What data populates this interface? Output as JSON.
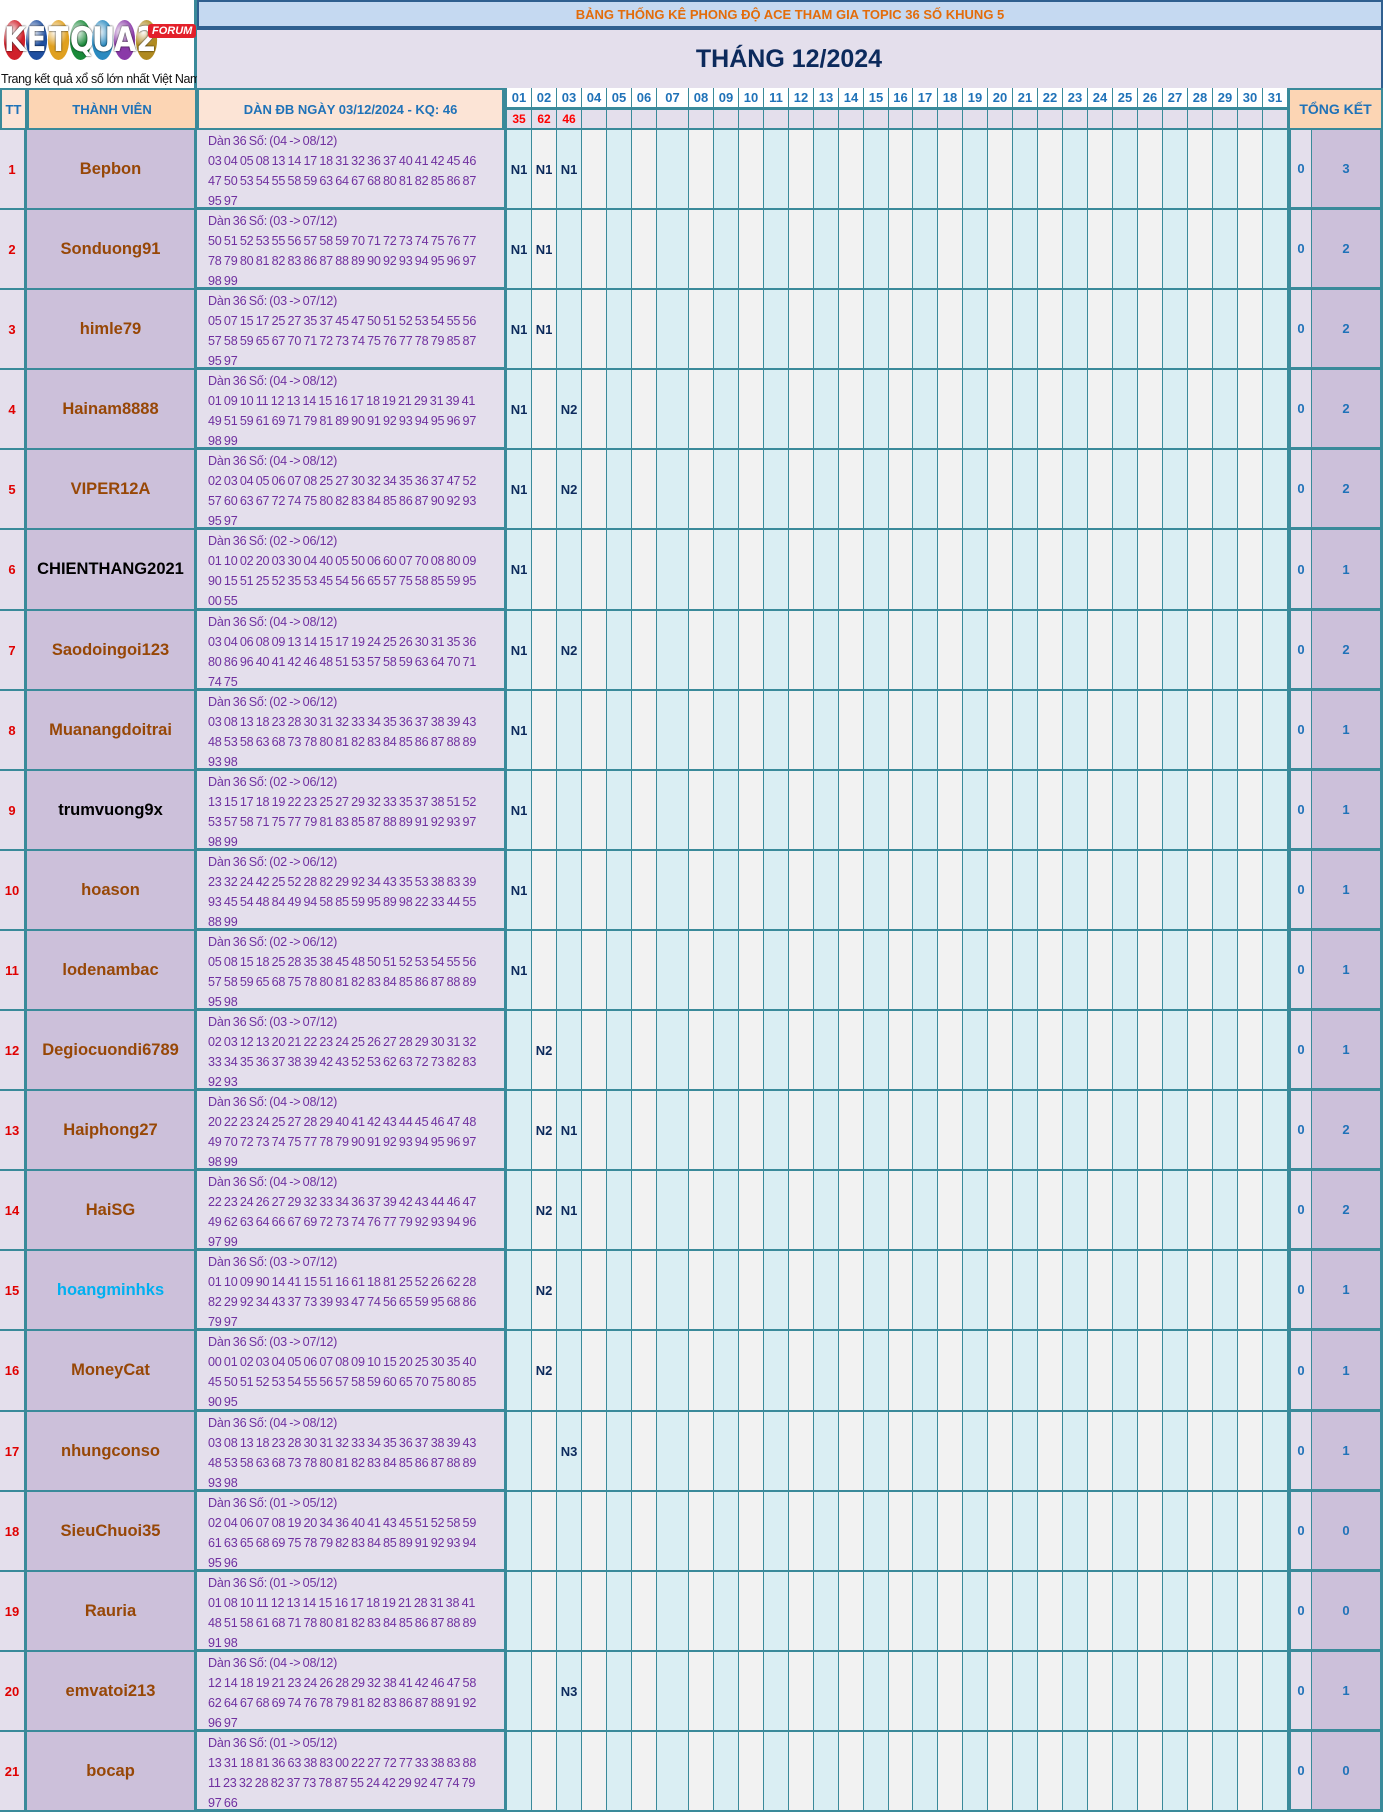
{
  "logo": {
    "letters": [
      "K",
      "E",
      "T",
      "Q",
      "U",
      "A",
      "2"
    ],
    "letter_colors": [
      "#d0202a",
      "#1f4fa0",
      "#e0a020",
      "#1a8a3a",
      "#2a8ac0",
      "#8a3aa8",
      "#b08a20"
    ],
    "forum_badge": "FORUM",
    "slogan": "Trang kết quả xổ số lớn nhất Việt Nam"
  },
  "header": {
    "banner": "BẢNG THỐNG KÊ PHONG ĐỘ ACE THAM GIA TOPIC 36 SỐ KHUNG 5",
    "title": "THÁNG 12/2024"
  },
  "columns": {
    "tt": "TT",
    "member": "THÀNH VIÊN",
    "dan": "DÀN ĐB NGÀY 03/12/2024 - KQ: 46",
    "summary": "TỔNG KẾT"
  },
  "days": [
    "01",
    "02",
    "03",
    "04",
    "05",
    "06",
    "07",
    "08",
    "09",
    "10",
    "11",
    "12",
    "13",
    "14",
    "15",
    "16",
    "17",
    "18",
    "19",
    "20",
    "21",
    "22",
    "23",
    "24",
    "25",
    "26",
    "27",
    "28",
    "29",
    "30",
    "31"
  ],
  "results": [
    "35",
    "62",
    "46",
    "",
    "",
    "",
    "",
    "",
    "",
    "",
    "",
    "",
    "",
    "",
    "",
    "",
    "",
    "",
    "",
    "",
    "",
    "",
    "",
    "",
    "",
    "",
    "",
    "",
    "",
    "",
    ""
  ],
  "colors": {
    "name_default": "#974706",
    "name_black": "#000000",
    "name_blue": "#00b0f0",
    "tt_red": "#e00000",
    "result_red": "#ff0000",
    "header_blue": "#1f72b8",
    "banner_orange": "#e36c0a",
    "dan_purple": "#7030a0"
  },
  "rows": [
    {
      "tt": "1",
      "name": "Bepbon",
      "name_color": "#974706",
      "dan_title": "Dàn 36 Số: (04 -> 08/12)",
      "dan_lines": [
        "03 04 05 08 13 14 17 18 31 32 36 37 40 41 42 45 46",
        "47 50 53 54 55 58 59 63 64 67 68 80 81 82 85 86 87",
        "95 97"
      ],
      "marks": [
        "N1",
        "N1",
        "N1"
      ],
      "t1": "0",
      "t2": "3"
    },
    {
      "tt": "2",
      "name": "Sonduong91",
      "name_color": "#974706",
      "dan_title": "Dàn 36 Số: (03 -> 07/12)",
      "dan_lines": [
        "50 51 52 53 55 56 57 58 59 70 71 72 73 74 75 76 77",
        "78 79 80 81 82 83 86 87 88 89 90 92 93 94 95 96 97",
        "98 99"
      ],
      "marks": [
        "N1",
        "N1",
        ""
      ],
      "t1": "0",
      "t2": "2"
    },
    {
      "tt": "3",
      "name": "himle79",
      "name_color": "#974706",
      "dan_title": "Dàn 36 Số: (03 -> 07/12)",
      "dan_lines": [
        "05 07 15 17 25 27 35 37 45 47 50 51 52 53 54 55 56",
        "57 58 59 65 67 70 71 72 73 74 75 76 77 78 79 85 87",
        "95 97"
      ],
      "marks": [
        "N1",
        "N1",
        ""
      ],
      "t1": "0",
      "t2": "2"
    },
    {
      "tt": "4",
      "name": "Hainam8888",
      "name_color": "#974706",
      "dan_title": "Dàn 36 Số: (04 -> 08/12)",
      "dan_lines": [
        "01 09 10 11 12 13 14 15 16 17 18 19 21 29 31 39 41",
        "49 51 59 61 69 71 79 81 89 90 91 92 93 94 95 96 97",
        "98 99"
      ],
      "marks": [
        "N1",
        "",
        "N2"
      ],
      "t1": "0",
      "t2": "2"
    },
    {
      "tt": "5",
      "name": "VIPER12A",
      "name_color": "#974706",
      "dan_title": "Dàn 36 Số: (04 -> 08/12)",
      "dan_lines": [
        "02 03 04 05 06 07 08 25 27 30 32 34 35 36 37 47 52",
        "57 60 63 67 72 74 75 80 82 83 84 85 86 87 90 92 93",
        "95 97"
      ],
      "marks": [
        "N1",
        "",
        "N2"
      ],
      "t1": "0",
      "t2": "2"
    },
    {
      "tt": "6",
      "name": "CHIENTHANG2021",
      "name_color": "#000000",
      "dan_title": "Dàn 36 Số: (02 -> 06/12)",
      "dan_lines": [
        "01 10 02 20 03 30 04 40 05 50 06 60 07 70 08 80 09",
        "90 15 51 25 52 35 53 45 54 56 65 57 75 58 85 59 95",
        "00 55"
      ],
      "marks": [
        "N1",
        "",
        ""
      ],
      "t1": "0",
      "t2": "1"
    },
    {
      "tt": "7",
      "name": "Saodoingoi123",
      "name_color": "#974706",
      "dan_title": "Dàn 36 Số: (04 -> 08/12)",
      "dan_lines": [
        "03 04 06 08 09 13 14 15 17 19 24 25 26 30 31 35 36",
        "80 86 96 40 41 42 46 48 51 53 57 58 59 63 64 70 71",
        "74 75"
      ],
      "marks": [
        "N1",
        "",
        "N2"
      ],
      "t1": "0",
      "t2": "2"
    },
    {
      "tt": "8",
      "name": "Muanangdoitrai",
      "name_color": "#974706",
      "dan_title": "Dàn 36 Số: (02 -> 06/12)",
      "dan_lines": [
        "03 08 13 18 23 28 30 31 32 33 34 35 36 37 38 39 43",
        "48 53 58 63 68 73 78 80 81 82 83 84 85 86 87 88 89",
        "93 98"
      ],
      "marks": [
        "N1",
        "",
        ""
      ],
      "t1": "0",
      "t2": "1"
    },
    {
      "tt": "9",
      "name": "trumvuong9x",
      "name_color": "#000000",
      "dan_title": "Dàn 36 Số: (02 -> 06/12)",
      "dan_lines": [
        "13 15 17 18 19 22 23 25 27 29 32 33 35 37 38 51 52",
        "53 57 58 71 75 77 79 81 83 85 87 88 89 91 92 93 97",
        "98 99"
      ],
      "marks": [
        "N1",
        "",
        ""
      ],
      "t1": "0",
      "t2": "1"
    },
    {
      "tt": "10",
      "name": "hoason",
      "name_color": "#974706",
      "dan_title": "Dàn 36 Số: (02 -> 06/12)",
      "dan_lines": [
        "23 32 24 42 25 52 28 82 29 92 34 43 35 53 38 83 39",
        "93 45 54 48 84 49 94 58 85 59 95 89 98 22 33 44 55",
        "88 99"
      ],
      "marks": [
        "N1",
        "",
        ""
      ],
      "t1": "0",
      "t2": "1"
    },
    {
      "tt": "11",
      "name": "lodenambac",
      "name_color": "#974706",
      "dan_title": "Dàn 36 Số: (02 -> 06/12)",
      "dan_lines": [
        "05 08 15 18 25 28 35 38 45 48 50 51 52 53 54 55 56",
        "57 58 59 65 68 75 78 80 81 82 83 84 85 86 87 88 89",
        "95 98"
      ],
      "marks": [
        "N1",
        "",
        ""
      ],
      "t1": "0",
      "t2": "1"
    },
    {
      "tt": "12",
      "name": "Degiocuondi6789",
      "name_color": "#974706",
      "dan_title": "Dàn 36 Số: (03 -> 07/12)",
      "dan_lines": [
        "02 03 12 13 20 21 22 23 24 25 26 27 28 29 30 31 32",
        "33 34 35 36 37 38 39 42 43 52 53 62 63 72 73 82 83",
        "92 93"
      ],
      "marks": [
        "",
        "N2",
        ""
      ],
      "t1": "0",
      "t2": "1"
    },
    {
      "tt": "13",
      "name": "Haiphong27",
      "name_color": "#974706",
      "dan_title": "Dàn 36 Số: (04 -> 08/12)",
      "dan_lines": [
        "20 22 23 24 25 27 28 29 40 41 42 43 44 45 46 47 48",
        "49 70 72 73 74 75 77 78 79 90 91 92 93 94 95 96 97",
        "98 99"
      ],
      "marks": [
        "",
        "N2",
        "N1"
      ],
      "t1": "0",
      "t2": "2"
    },
    {
      "tt": "14",
      "name": "HaiSG",
      "name_color": "#974706",
      "dan_title": "Dàn 36 Số: (04 -> 08/12)",
      "dan_lines": [
        "22 23 24 26 27 29 32 33 34 36 37 39 42 43 44 46 47",
        "49 62 63 64 66 67 69 72 73 74 76 77 79 92 93 94 96",
        "97 99"
      ],
      "marks": [
        "",
        "N2",
        "N1"
      ],
      "t1": "0",
      "t2": "2"
    },
    {
      "tt": "15",
      "name": "hoangminhks",
      "name_color": "#00b0f0",
      "dan_title": "Dàn 36 Số: (03 -> 07/12)",
      "dan_lines": [
        "01 10 09 90 14 41 15 51 16 61 18 81 25 52 26 62 28",
        "82 29 92 34 43 37 73 39 93 47 74 56 65 59 95 68 86",
        "79 97"
      ],
      "marks": [
        "",
        "N2",
        ""
      ],
      "t1": "0",
      "t2": "1"
    },
    {
      "tt": "16",
      "name": "MoneyCat",
      "name_color": "#974706",
      "dan_title": "Dàn 36 Số: (03 -> 07/12)",
      "dan_lines": [
        "00 01 02 03 04 05 06 07 08 09 10 15 20 25 30 35 40",
        "45 50 51 52 53 54 55 56 57 58 59 60 65 70 75 80 85",
        "90 95"
      ],
      "marks": [
        "",
        "N2",
        ""
      ],
      "t1": "0",
      "t2": "1"
    },
    {
      "tt": "17",
      "name": "nhungconso",
      "name_color": "#974706",
      "dan_title": "Dàn 36 Số: (04 -> 08/12)",
      "dan_lines": [
        "03 08 13 18 23 28 30 31 32 33 34 35 36 37 38 39 43",
        "48 53 58 63 68 73 78 80 81 82 83 84 85 86 87 88 89",
        "93 98"
      ],
      "marks": [
        "",
        "",
        "N3"
      ],
      "t1": "0",
      "t2": "1"
    },
    {
      "tt": "18",
      "name": "SieuChuoi35",
      "name_color": "#974706",
      "dan_title": "Dàn 36 Số: (01 -> 05/12)",
      "dan_lines": [
        "02 04 06 07 08 19 20 34 36 40 41 43 45 51 52 58 59",
        "61 63 65 68 69 75 78 79 82 83 84 85 89 91 92 93 94",
        "95 96"
      ],
      "marks": [
        "",
        "",
        ""
      ],
      "t1": "0",
      "t2": "0"
    },
    {
      "tt": "19",
      "name": "Rauria",
      "name_color": "#974706",
      "dan_title": "Dàn 36 Số: (01 -> 05/12)",
      "dan_lines": [
        "01 08 10 11 12 13 14 15 16 17 18 19 21 28 31 38 41",
        "48 51 58 61 68 71 78 80 81 82 83 84 85 86 87 88 89",
        "91 98"
      ],
      "marks": [
        "",
        "",
        ""
      ],
      "t1": "0",
      "t2": "0"
    },
    {
      "tt": "20",
      "name": "emvatoi213",
      "name_color": "#974706",
      "dan_title": "Dàn 36 Số: (04 -> 08/12)",
      "dan_lines": [
        "12 14 18 19 21 23 24 26 28 29 32 38 41 42 46 47 58",
        "62 64 67 68 69 74 76 78 79 81 82 83 86 87 88 91 92",
        "96 97"
      ],
      "marks": [
        "",
        "",
        "N3"
      ],
      "t1": "0",
      "t2": "1"
    },
    {
      "tt": "21",
      "name": "bocap",
      "name_color": "#974706",
      "dan_title": "Dàn 36 Số: (01 -> 05/12)",
      "dan_lines": [
        "13 31 18 81 36 63 38 83 00 22 27 72 77 33 38 83 88",
        "11 23 32 28 82 37 73 78 87 55 24 42 29 92 47 74 79",
        "97 66"
      ],
      "marks": [
        "",
        "",
        ""
      ],
      "t1": "0",
      "t2": "0"
    }
  ]
}
